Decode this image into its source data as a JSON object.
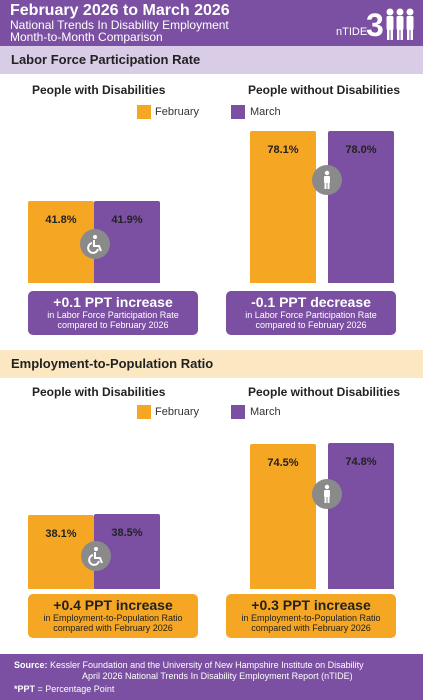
{
  "header": {
    "title": "February 2026 to March 2026",
    "subtitle1": "National Trends In Disability Employment",
    "subtitle2": "Month-to-Month Comparison",
    "logo_text": "nTIDE",
    "logo_icon": "people-group-icon"
  },
  "colors": {
    "purple": "#7b4fa2",
    "gold": "#f5a623",
    "icon_gray": "#8a8a8a"
  },
  "legend": {
    "february": "February",
    "march": "March"
  },
  "sections": [
    {
      "title": "Labor Force Participation Rate",
      "groups": [
        {
          "title": "People with Disabilities",
          "icon": "wheelchair-icon",
          "callout": {
            "headline": "+0.1 PPT  increase",
            "line1": "in Labor Force Participation Rate",
            "line2": "compared to February 2026",
            "style": "purple"
          }
        },
        {
          "title": "People without Disabilities",
          "icon": "person-icon",
          "callout": {
            "headline": "-0.1 PPT  decrease",
            "line1": "in Labor Force Participation Rate",
            "line2": "compared to February 2026",
            "style": "purple"
          }
        }
      ]
    },
    {
      "title": "Employment-to-Population Ratio",
      "groups": [
        {
          "title": "People with Disabilities",
          "icon": "wheelchair-icon",
          "callout": {
            "headline": "+0.4 PPT  increase",
            "line1": "in Employment-to-Population Ratio",
            "line2": "compared with February 2026",
            "style": "gold"
          }
        },
        {
          "title": "People without Disabilities",
          "icon": "person-icon",
          "callout": {
            "headline": "+0.3 PPT  increase",
            "line1": "in Employment-to-Population Ratio",
            "line2": "compared with February 2026",
            "style": "gold"
          }
        }
      ]
    }
  ],
  "chart_data": [
    {
      "type": "bar",
      "title": "Labor Force Participation Rate",
      "subtitle": "People with Disabilities",
      "categories": [
        "February",
        "March"
      ],
      "values": [
        41.8,
        41.9
      ],
      "labels": [
        "41.8%",
        "41.9%"
      ],
      "colors": [
        "#f5a623",
        "#7b4fa2"
      ],
      "ylim": [
        0,
        100
      ]
    },
    {
      "type": "bar",
      "title": "Labor Force Participation Rate",
      "subtitle": "People without Disabilities",
      "categories": [
        "February",
        "March"
      ],
      "values": [
        78.1,
        78.0
      ],
      "labels": [
        "78.1%",
        "78.0%"
      ],
      "colors": [
        "#f5a623",
        "#7b4fa2"
      ],
      "ylim": [
        0,
        100
      ]
    },
    {
      "type": "bar",
      "title": "Employment-to-Population Ratio",
      "subtitle": "People with Disabilities",
      "categories": [
        "February",
        "March"
      ],
      "values": [
        38.1,
        38.5
      ],
      "labels": [
        "38.1%",
        "38.5%"
      ],
      "colors": [
        "#f5a623",
        "#7b4fa2"
      ],
      "ylim": [
        0,
        100
      ]
    },
    {
      "type": "bar",
      "title": "Employment-to-Population Ratio",
      "subtitle": "People without Disabilities",
      "categories": [
        "February",
        "March"
      ],
      "values": [
        74.5,
        74.8
      ],
      "labels": [
        "74.5%",
        "74.8%"
      ],
      "colors": [
        "#f5a623",
        "#7b4fa2"
      ],
      "ylim": [
        0,
        100
      ]
    }
  ],
  "footer": {
    "source_label": "Source:",
    "source_line1": "Kessler Foundation and the University of New Hampshire Institute on Disability",
    "source_line2": "April 2026 National Trends In Disability Employment Report (nTIDE)",
    "ppt_label": "*PPT",
    "ppt_text": " = Percentage Point"
  }
}
